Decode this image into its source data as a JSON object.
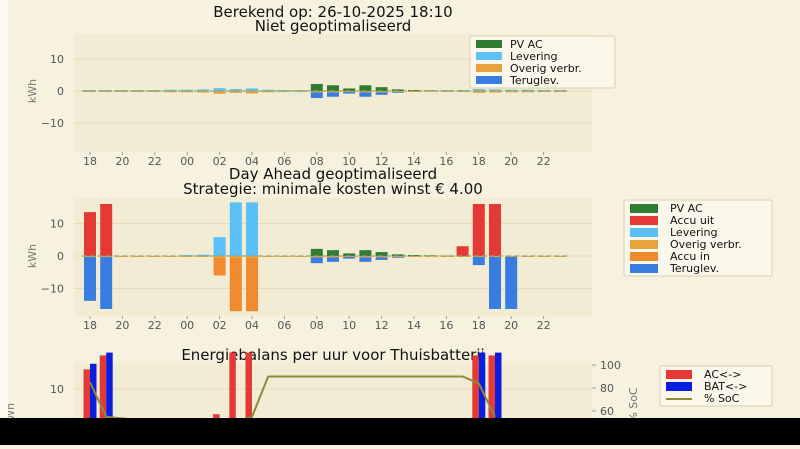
{
  "header": {
    "title": "Berekend op: 26-10-2025 18:10"
  },
  "hours": [
    "18",
    "19",
    "20",
    "21",
    "22",
    "23",
    "00",
    "01",
    "02",
    "03",
    "04",
    "05",
    "06",
    "07",
    "08",
    "09",
    "10",
    "11",
    "12",
    "13",
    "14",
    "15",
    "16",
    "17",
    "18",
    "19",
    "20",
    "21",
    "22",
    "23"
  ],
  "colors": {
    "pv_ac": "#2e7d32",
    "levering": "#5bc0f5",
    "overig": "#e8a33c",
    "teruglev": "#3a7de0",
    "accu_uit": "#e53935",
    "accu_in": "#ef8a2e",
    "ac": "#e53935",
    "bat": "#0a1ee0",
    "soc": "#8f8a3a",
    "baseline": "#9aa060"
  },
  "chart_data": [
    {
      "type": "bar",
      "title": "Niet geoptimaliseerd",
      "ylabel": "kWh",
      "ylim": [
        -20,
        20
      ],
      "yticks": [
        "10",
        "0",
        "−10"
      ],
      "xtick_labels": [
        "18",
        "20",
        "22",
        "00",
        "02",
        "04",
        "06",
        "08",
        "10",
        "12",
        "14",
        "16",
        "18",
        "20",
        "22"
      ],
      "legend": [
        "PV AC",
        "Levering",
        "Overig verbr.",
        "Teruglev."
      ],
      "legend_position": "top-right",
      "categories": [
        "18",
        "19",
        "20",
        "21",
        "22",
        "23",
        "00",
        "01",
        "02",
        "03",
        "04",
        "05",
        "06",
        "07",
        "08",
        "09",
        "10",
        "11",
        "12",
        "13",
        "14",
        "15",
        "16",
        "17",
        "18",
        "19",
        "20",
        "21",
        "22",
        "23"
      ],
      "series": [
        {
          "name": "PV AC",
          "color_key": "pv_ac",
          "values": [
            0,
            0,
            0,
            0,
            0,
            0,
            0,
            0,
            0,
            0,
            0,
            0,
            0,
            0,
            2.2,
            1.8,
            0.8,
            1.8,
            1.2,
            0.5,
            0.3,
            0.2,
            0.1,
            0,
            0,
            0,
            0,
            0,
            0,
            0
          ]
        },
        {
          "name": "Levering",
          "color_key": "levering",
          "values": [
            0.3,
            0.3,
            0.3,
            0.3,
            0.3,
            0.4,
            0.4,
            0.5,
            0.9,
            0.6,
            0.8,
            0.4,
            0.3,
            0.3,
            0,
            0,
            0,
            0,
            0,
            0,
            0,
            0,
            0.2,
            0.3,
            0.6,
            0.5,
            0.4,
            0.4,
            0.3,
            0.3
          ]
        },
        {
          "name": "Overig verbr.",
          "color_key": "overig",
          "values": [
            -0.3,
            -0.3,
            -0.3,
            -0.3,
            -0.3,
            -0.4,
            -0.4,
            -0.5,
            -0.9,
            -0.6,
            -0.8,
            -0.4,
            -0.3,
            -0.3,
            -0.4,
            -0.4,
            -0.3,
            -0.4,
            -0.4,
            -0.3,
            -0.3,
            -0.2,
            -0.3,
            -0.3,
            -0.6,
            -0.5,
            -0.4,
            -0.4,
            -0.3,
            -0.3
          ]
        },
        {
          "name": "Teruglev.",
          "color_key": "teruglev",
          "values": [
            0,
            0,
            0,
            0,
            0,
            0,
            0,
            0,
            0,
            0,
            0,
            0,
            0,
            0,
            -1.8,
            -1.4,
            -0.5,
            -1.4,
            -0.8,
            -0.2,
            0,
            0,
            0,
            0,
            0,
            0,
            0,
            0,
            0,
            0
          ]
        }
      ]
    },
    {
      "type": "bar",
      "title": "Day Ahead geoptimaliseerd",
      "subtitle": "Strategie: minimale kosten winst € 4.00",
      "ylabel": "kWh",
      "ylim": [
        -20,
        20
      ],
      "yticks": [
        "10",
        "0",
        "−10"
      ],
      "xtick_labels": [
        "18",
        "20",
        "22",
        "00",
        "02",
        "04",
        "06",
        "08",
        "10",
        "12",
        "14",
        "16",
        "18",
        "20",
        "22"
      ],
      "legend": [
        "PV AC",
        "Accu uit",
        "Levering",
        "Overig verbr.",
        "Accu in",
        "Teruglev."
      ],
      "legend_position": "outside-right",
      "categories": [
        "18",
        "19",
        "20",
        "21",
        "22",
        "23",
        "00",
        "01",
        "02",
        "03",
        "04",
        "05",
        "06",
        "07",
        "08",
        "09",
        "10",
        "11",
        "12",
        "13",
        "14",
        "15",
        "16",
        "17",
        "18",
        "19",
        "20",
        "21",
        "22",
        "23"
      ],
      "series": [
        {
          "name": "PV AC",
          "color_key": "pv_ac",
          "values": [
            0,
            0,
            0,
            0,
            0,
            0,
            0,
            0,
            0,
            0,
            0,
            0,
            0,
            0,
            2.2,
            1.8,
            0.8,
            1.8,
            1.2,
            0.5,
            0.3,
            0.2,
            0.1,
            0,
            0,
            0,
            0,
            0,
            0,
            0
          ]
        },
        {
          "name": "Accu uit",
          "color_key": "accu_uit",
          "values": [
            13.5,
            16,
            0,
            0,
            0,
            0,
            0,
            0,
            0,
            0,
            0,
            0,
            0,
            0,
            0,
            0,
            0,
            0,
            0,
            0,
            0,
            0,
            0,
            3,
            16,
            16,
            0,
            0,
            0,
            0
          ]
        },
        {
          "name": "Levering",
          "color_key": "levering",
          "values": [
            0,
            0,
            0,
            0,
            0,
            0,
            0.3,
            0.4,
            5.8,
            16.5,
            16.5,
            0,
            0,
            0,
            0,
            0,
            0,
            0,
            0,
            0,
            0,
            0,
            0,
            0,
            0,
            0,
            0,
            0,
            0,
            0
          ]
        },
        {
          "name": "Overig verbr.",
          "color_key": "overig",
          "values": [
            -0.3,
            -0.3,
            -0.3,
            -0.3,
            -0.3,
            -0.3,
            -0.3,
            -0.3,
            -0.5,
            -0.5,
            -0.5,
            -0.3,
            -0.3,
            -0.3,
            -0.4,
            -0.4,
            -0.3,
            -0.4,
            -0.4,
            -0.3,
            -0.3,
            -0.2,
            -0.3,
            -0.3,
            -0.3,
            -0.3,
            -0.3,
            -0.3,
            -0.3,
            -0.3
          ]
        },
        {
          "name": "Accu in",
          "color_key": "accu_in",
          "values": [
            0,
            0,
            0,
            0,
            0,
            0,
            0,
            0,
            -5.5,
            -16.5,
            -16.5,
            0,
            0,
            0,
            0,
            0,
            0,
            0,
            0,
            0,
            0,
            0,
            0,
            0,
            0,
            0,
            0,
            0,
            0,
            0
          ]
        },
        {
          "name": "Teruglev.",
          "color_key": "teruglev",
          "values": [
            -13.5,
            -16,
            0,
            0,
            0,
            0,
            0,
            0,
            0,
            0,
            0,
            0,
            0,
            0,
            -1.8,
            -1.4,
            -0.5,
            -1.4,
            -0.8,
            -0.2,
            0,
            0,
            0,
            0,
            -2.5,
            -16,
            -16,
            0,
            0,
            0
          ]
        }
      ]
    },
    {
      "type": "bar",
      "title": "Energiebalans per uur voor Thuisbatterij",
      "ylabel": "kWh",
      "y2label": "% SoC",
      "yticks": [
        "10"
      ],
      "y2ticks": [
        "100",
        "80",
        "60"
      ],
      "legend": [
        "AC<->",
        "BAT<->",
        "% SoC"
      ],
      "legend_position": "outside-right",
      "categories": [
        "18",
        "19",
        "20",
        "21",
        "22",
        "23",
        "00",
        "01",
        "02",
        "03",
        "04",
        "05",
        "06",
        "07",
        "08",
        "09",
        "10",
        "11",
        "12",
        "13",
        "14",
        "15",
        "16",
        "17",
        "18",
        "19",
        "20",
        "21",
        "22",
        "23"
      ],
      "series": [
        {
          "name": "AC<->",
          "color_key": "ac",
          "values": [
            13.5,
            16,
            0,
            0,
            0,
            0,
            0,
            0,
            5.5,
            16.5,
            16.5,
            0,
            0,
            0,
            0,
            0,
            0,
            0,
            0,
            0,
            0,
            0,
            0,
            3,
            16,
            16,
            0,
            0,
            0,
            0
          ]
        },
        {
          "name": "BAT<->",
          "color_key": "bat",
          "values": [
            14.5,
            16.5,
            0,
            0,
            0,
            0,
            0,
            0,
            0,
            0,
            0,
            0,
            0,
            0,
            0,
            0,
            0,
            0,
            0,
            0,
            0,
            0,
            0,
            3.5,
            16.5,
            16.5,
            0,
            0,
            0,
            0
          ]
        },
        {
          "name": "% SoC",
          "color_key": "soc",
          "soc_at_hour_index": [
            [
              0,
              85
            ],
            [
              1,
              55
            ],
            [
              8,
              45
            ],
            [
              10,
              55
            ],
            [
              11,
              90
            ],
            [
              23,
              90
            ],
            [
              24,
              84
            ],
            [
              25,
              55
            ]
          ]
        }
      ]
    }
  ]
}
